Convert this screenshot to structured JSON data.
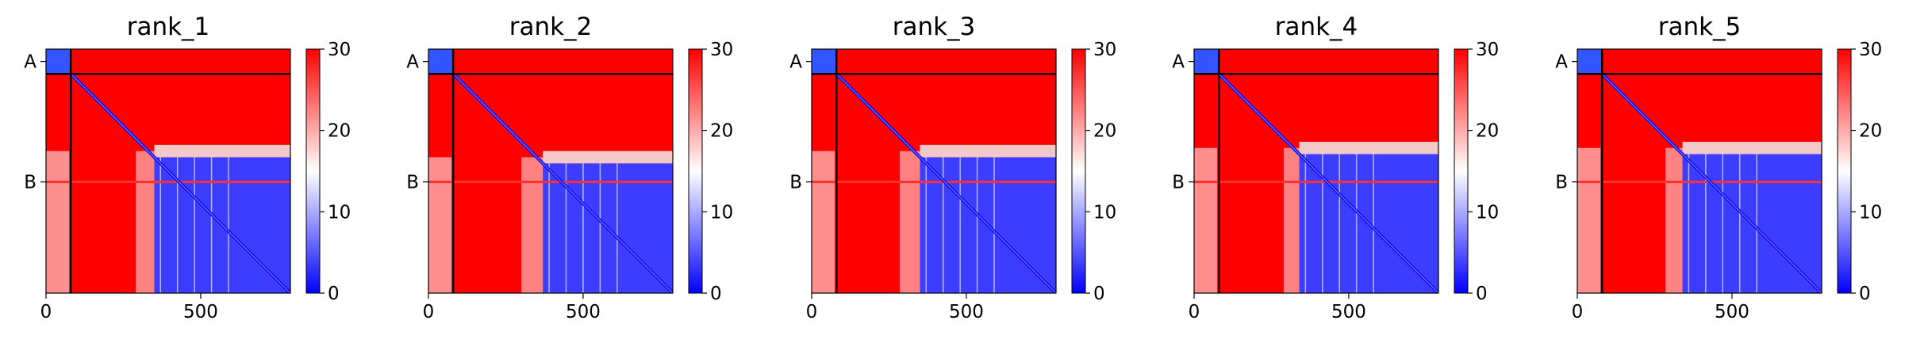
{
  "chart_data": [
    {
      "type": "heatmap",
      "title": "rank_1",
      "xlabel": "",
      "ylabel": "",
      "xlim": [
        0,
        790
      ],
      "x_ticks": [
        {
          "value": 0,
          "label": "0"
        },
        {
          "value": 500,
          "label": "500"
        }
      ],
      "y_ticks": [
        {
          "value": 40,
          "label": "A"
        },
        {
          "value": 430,
          "label": "B"
        }
      ],
      "chain_boundary": 80,
      "colorbar": {
        "min": 0,
        "max": 30,
        "ticks": [
          0,
          10,
          20,
          30
        ],
        "colormap": "bwr"
      },
      "low_error_block_start": 350,
      "stripe_start": 290
    },
    {
      "type": "heatmap",
      "title": "rank_2",
      "xlabel": "",
      "ylabel": "",
      "xlim": [
        0,
        790
      ],
      "x_ticks": [
        {
          "value": 0,
          "label": "0"
        },
        {
          "value": 500,
          "label": "500"
        }
      ],
      "y_ticks": [
        {
          "value": 40,
          "label": "A"
        },
        {
          "value": 430,
          "label": "B"
        }
      ],
      "chain_boundary": 80,
      "colorbar": {
        "min": 0,
        "max": 30,
        "ticks": [
          0,
          10,
          20,
          30
        ],
        "colormap": "bwr"
      },
      "low_error_block_start": 370,
      "stripe_start": 300
    },
    {
      "type": "heatmap",
      "title": "rank_3",
      "xlabel": "",
      "ylabel": "",
      "xlim": [
        0,
        790
      ],
      "x_ticks": [
        {
          "value": 0,
          "label": "0"
        },
        {
          "value": 500,
          "label": "500"
        }
      ],
      "y_ticks": [
        {
          "value": 40,
          "label": "A"
        },
        {
          "value": 430,
          "label": "B"
        }
      ],
      "chain_boundary": 80,
      "colorbar": {
        "min": 0,
        "max": 30,
        "ticks": [
          0,
          10,
          20,
          30
        ],
        "colormap": "bwr"
      },
      "low_error_block_start": 350,
      "stripe_start": 285
    },
    {
      "type": "heatmap",
      "title": "rank_4",
      "xlabel": "",
      "ylabel": "",
      "xlim": [
        0,
        790
      ],
      "x_ticks": [
        {
          "value": 0,
          "label": "0"
        },
        {
          "value": 500,
          "label": "500"
        }
      ],
      "y_ticks": [
        {
          "value": 40,
          "label": "A"
        },
        {
          "value": 430,
          "label": "B"
        }
      ],
      "chain_boundary": 80,
      "colorbar": {
        "min": 0,
        "max": 30,
        "ticks": [
          0,
          10,
          20,
          30
        ],
        "colormap": "bwr"
      },
      "low_error_block_start": 340,
      "stripe_start": 290
    },
    {
      "type": "heatmap",
      "title": "rank_5",
      "xlabel": "",
      "ylabel": "",
      "xlim": [
        0,
        790
      ],
      "x_ticks": [
        {
          "value": 0,
          "label": "0"
        },
        {
          "value": 500,
          "label": "500"
        }
      ],
      "y_ticks": [
        {
          "value": 40,
          "label": "A"
        },
        {
          "value": 430,
          "label": "B"
        }
      ],
      "chain_boundary": 80,
      "colorbar": {
        "min": 0,
        "max": 30,
        "ticks": [
          0,
          10,
          20,
          30
        ],
        "colormap": "bwr"
      },
      "low_error_block_start": 340,
      "stripe_start": 285
    }
  ]
}
